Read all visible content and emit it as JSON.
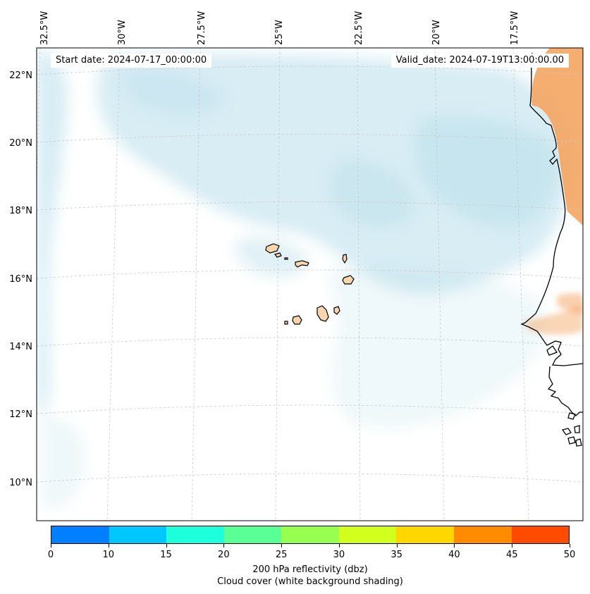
{
  "annotations": {
    "start_date": "Start date: 2024-07-17_00:00:00",
    "valid_date": "Valid_date: 2024-07-19T13:00:00.00"
  },
  "map": {
    "longitude_labels": [
      "32.5°W",
      "30°W",
      "27.5°W",
      "25°W",
      "22.5°W",
      "20°W",
      "17.5°W"
    ],
    "latitude_labels": [
      "22°N",
      "20°N",
      "18°N",
      "16°N",
      "14°N",
      "12°N",
      "10°N"
    ],
    "extent": {
      "lon_min": -33.0,
      "lon_max": -15.7,
      "lat_min": 8.9,
      "lat_max": 22.7
    }
  },
  "colorbar": {
    "ticks": [
      "0",
      "10",
      "15",
      "20",
      "25",
      "30",
      "35",
      "40",
      "45",
      "50"
    ],
    "colors": [
      "#0080ff",
      "#00c8ff",
      "#1effdc",
      "#5aff96",
      "#96ff50",
      "#d2ff1e",
      "#ffd700",
      "#ff8c00",
      "#ff4b00"
    ],
    "label_line1": "200 hPa reflectivity (dbz)",
    "label_line2": "Cloud cover (white background shading)"
  },
  "style": {
    "cloud_color": "#a8d8e6",
    "land_color": "#f4a460",
    "coast_color": "#000000",
    "grid_color": "#c8c8c8"
  }
}
